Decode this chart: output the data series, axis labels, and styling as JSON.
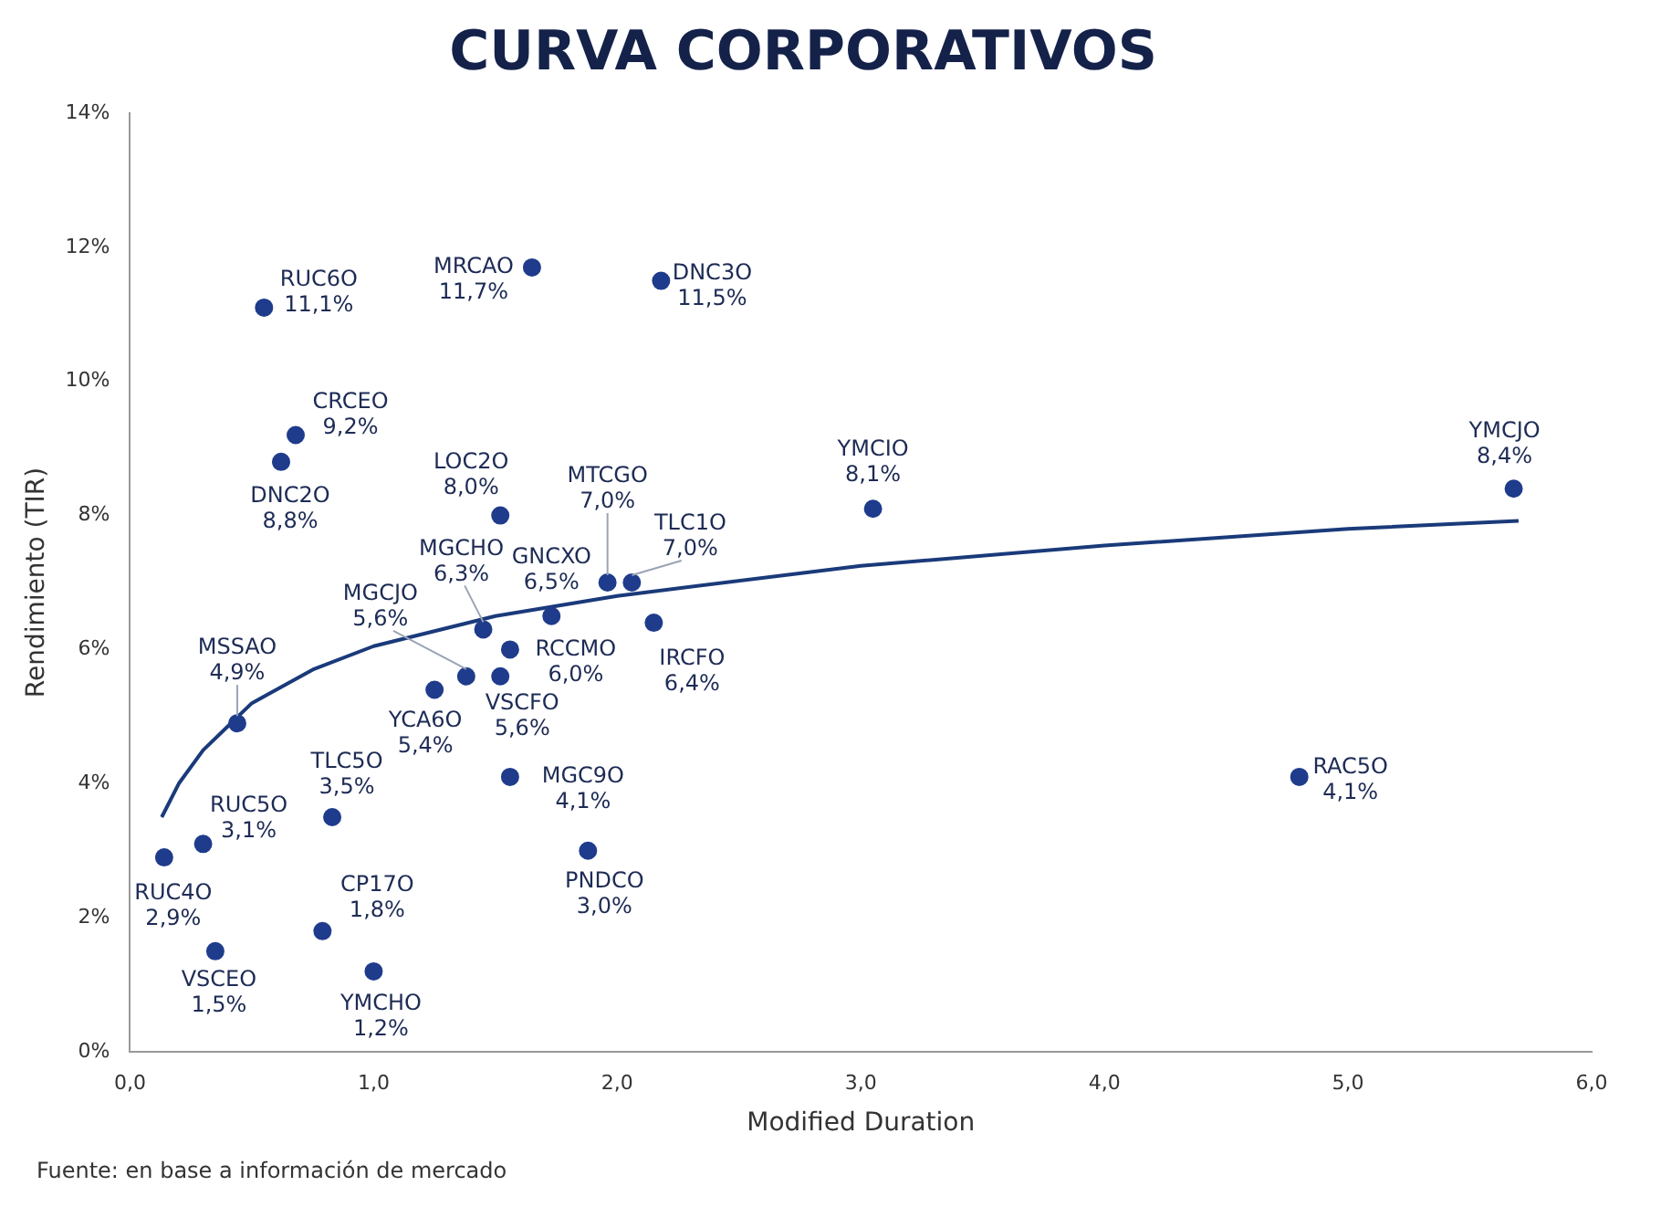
{
  "chart_data": {
    "type": "scatter",
    "title": "CURVA CORPORATIVOS",
    "xlabel": "Modified Duration",
    "ylabel": "Rendimiento (TIR)",
    "xlim": [
      0,
      6
    ],
    "xticks": [
      {
        "value": 0,
        "label": "0,0"
      },
      {
        "value": 1,
        "label": "1,0"
      },
      {
        "value": 2,
        "label": "2,0"
      },
      {
        "value": 3,
        "label": "3,0"
      },
      {
        "value": 4,
        "label": "4,0"
      },
      {
        "value": 5,
        "label": "5,0"
      },
      {
        "value": 6,
        "label": "6,0"
      }
    ],
    "ylim": [
      0,
      14
    ],
    "yticks": [
      {
        "value": 0,
        "label": "0%"
      },
      {
        "value": 2,
        "label": "2%"
      },
      {
        "value": 4,
        "label": "4%"
      },
      {
        "value": 6,
        "label": "6%"
      },
      {
        "value": 8,
        "label": "8%"
      },
      {
        "value": 10,
        "label": "10%"
      },
      {
        "value": 12,
        "label": "12%"
      },
      {
        "value": 14,
        "label": "14%"
      }
    ],
    "grid": false,
    "legend": false,
    "marker": "circle",
    "series": [
      {
        "color": "#1f3c8c",
        "x": [
          0.55,
          1.65,
          2.18,
          0.68,
          0.62,
          1.52,
          1.96,
          2.06,
          3.05,
          5.68,
          1.73,
          1.45,
          1.38,
          1.56,
          2.15,
          0.44,
          1.25,
          1.52,
          0.83,
          1.56,
          0.3,
          0.14,
          1.88,
          0.79,
          0.35,
          1.0,
          4.8
        ],
        "values": [
          11.1,
          11.7,
          11.5,
          9.2,
          8.8,
          8.0,
          7.0,
          7.0,
          8.1,
          8.4,
          6.5,
          6.3,
          5.6,
          6.0,
          6.4,
          4.9,
          5.4,
          5.6,
          3.5,
          4.1,
          3.1,
          2.9,
          3.0,
          1.8,
          1.5,
          1.2,
          4.1
        ],
        "value_labels": [
          "11,1%",
          "11,7%",
          "11,5%",
          "9,2%",
          "8,8%",
          "8,0%",
          "7,0%",
          "7,0%",
          "8,1%",
          "8,4%",
          "6,5%",
          "6,3%",
          "5,6%",
          "6,0%",
          "6,4%",
          "4,9%",
          "5,4%",
          "5,6%",
          "3,5%",
          "4,1%",
          "3,1%",
          "2,9%",
          "3,0%",
          "1,8%",
          "1,5%",
          "1,2%",
          "4,1%"
        ]
      },
      {
        "type": "line",
        "color": "#1a3a7a",
        "line_style": "solid",
        "marker": "none",
        "x": [
          0.13,
          0.2,
          0.3,
          0.5,
          0.75,
          1.0,
          1.5,
          2.0,
          3.0,
          4.0,
          5.0,
          5.7
        ],
        "values": [
          3.5,
          4.0,
          4.5,
          5.2,
          5.7,
          6.05,
          6.5,
          6.8,
          7.25,
          7.55,
          7.8,
          7.92
        ]
      }
    ],
    "annotations": [
      {
        "text": "RUC6O",
        "x": 0.55,
        "y": 11.1
      },
      {
        "text": "MRCAO",
        "x": 1.65,
        "y": 11.7
      },
      {
        "text": "DNC3O",
        "x": 2.18,
        "y": 11.5
      },
      {
        "text": "CRCEO",
        "x": 0.68,
        "y": 9.2
      },
      {
        "text": "DNC2O",
        "x": 0.62,
        "y": 8.8
      },
      {
        "text": "LOC2O",
        "x": 1.52,
        "y": 8.0
      },
      {
        "text": "MTCGO",
        "x": 1.96,
        "y": 7.0
      },
      {
        "text": "TLC1O",
        "x": 2.06,
        "y": 7.0
      },
      {
        "text": "YMCIO",
        "x": 3.05,
        "y": 8.1
      },
      {
        "text": "YMCJO",
        "x": 5.68,
        "y": 8.4
      },
      {
        "text": "GNCXO",
        "x": 1.73,
        "y": 6.5
      },
      {
        "text": "MGCHO",
        "x": 1.45,
        "y": 6.3
      },
      {
        "text": "MGCJO",
        "x": 1.38,
        "y": 5.6
      },
      {
        "text": "RCCMO",
        "x": 1.56,
        "y": 6.0
      },
      {
        "text": "IRCFO",
        "x": 2.15,
        "y": 6.4
      },
      {
        "text": "MSSAO",
        "x": 0.44,
        "y": 4.9
      },
      {
        "text": "YCA6O",
        "x": 1.25,
        "y": 5.4
      },
      {
        "text": "VSCFO",
        "x": 1.52,
        "y": 5.6
      },
      {
        "text": "TLC5O",
        "x": 0.83,
        "y": 3.5
      },
      {
        "text": "MGC9O",
        "x": 1.56,
        "y": 4.1
      },
      {
        "text": "RUC5O",
        "x": 0.3,
        "y": 3.1
      },
      {
        "text": "RUC4O",
        "x": 0.14,
        "y": 2.9
      },
      {
        "text": "PNDCO",
        "x": 1.88,
        "y": 3.0
      },
      {
        "text": "CP17O",
        "x": 0.79,
        "y": 1.8
      },
      {
        "text": "VSCEO",
        "x": 0.35,
        "y": 1.5
      },
      {
        "text": "YMCHO",
        "x": 1.0,
        "y": 1.2
      },
      {
        "text": "RAC5O",
        "x": 4.8,
        "y": 4.1
      },
      "Fuente: en base a información de mercado"
    ]
  }
}
